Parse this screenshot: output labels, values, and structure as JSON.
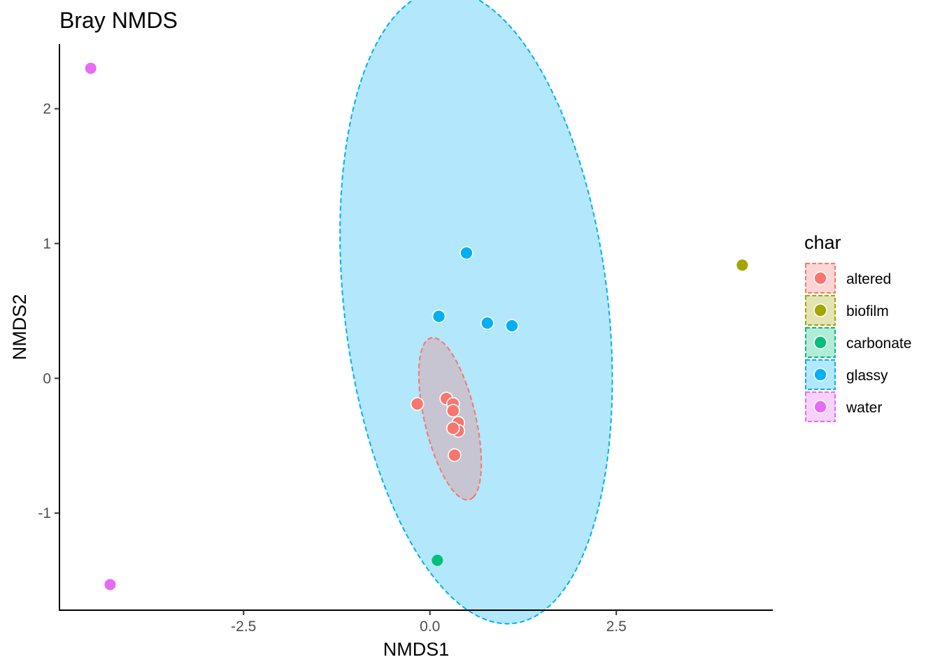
{
  "chart_data": {
    "type": "scatter",
    "title": "Bray NMDS",
    "xlabel": "NMDS1",
    "ylabel": "NMDS2",
    "xlim": [
      -4.97,
      4.6
    ],
    "ylim": [
      -1.72,
      2.48
    ],
    "x_ticks": [
      -2.5,
      0,
      2.5
    ],
    "x_tick_labels": [
      "-2.5",
      "0.0",
      "2.5"
    ],
    "y_ticks": [
      -1,
      0,
      1,
      2
    ],
    "y_tick_labels": [
      "-1",
      "0",
      "1",
      "2"
    ],
    "grid": false,
    "legend": {
      "title": "char",
      "position": "right"
    },
    "series": [
      {
        "name": "altered",
        "color": "#F8766D",
        "points": [
          [
            -0.17,
            -0.19
          ],
          [
            0.22,
            -0.15
          ],
          [
            0.31,
            -0.19
          ],
          [
            0.31,
            -0.24
          ],
          [
            0.38,
            -0.33
          ],
          [
            0.38,
            -0.39
          ],
          [
            0.31,
            -0.37
          ],
          [
            0.33,
            -0.57
          ]
        ],
        "ellipse": {
          "center": [
            0.27,
            -0.3
          ],
          "semi_axes": [
            0.66,
            0.32
          ],
          "angle_deg": -62
        }
      },
      {
        "name": "biofilm",
        "color": "#A3A500",
        "points": [
          [
            4.19,
            0.84
          ]
        ]
      },
      {
        "name": "carbonate",
        "color": "#00BF7D",
        "points": [
          [
            0.1,
            -1.35
          ]
        ]
      },
      {
        "name": "glassy",
        "color": "#00B0F6",
        "points": [
          [
            0.49,
            0.93
          ],
          [
            0.12,
            0.46
          ],
          [
            0.77,
            0.41
          ],
          [
            1.1,
            0.39
          ]
        ],
        "ellipse": {
          "center": [
            0.62,
            0.53
          ],
          "semi_axes": [
            2.43,
            1.72
          ],
          "angle_deg": -69
        }
      },
      {
        "name": "water",
        "color": "#E76BF3",
        "points": [
          [
            -4.55,
            2.3
          ],
          [
            -4.29,
            -1.53
          ]
        ]
      }
    ]
  }
}
